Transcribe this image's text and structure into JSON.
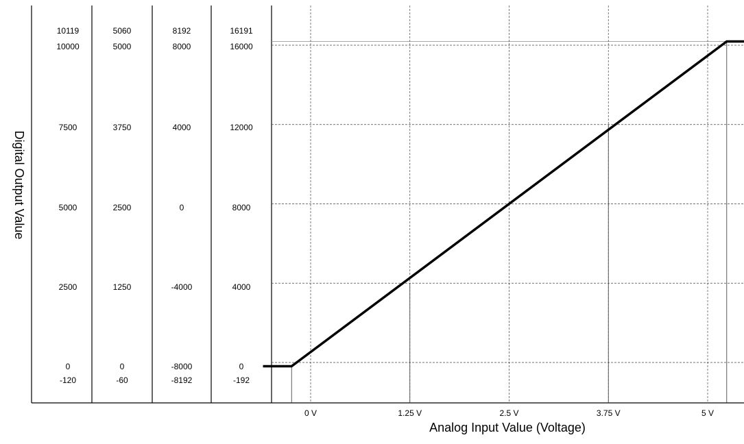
{
  "chart_data": {
    "type": "line",
    "title": "",
    "xlabel": "Analog Input Value (Voltage)",
    "ylabel": "Digital Output Value",
    "grid": true,
    "x_ticks": [
      {
        "value": 0,
        "label": "0 V"
      },
      {
        "value": 1.25,
        "label": "1.25 V"
      },
      {
        "value": 2.5,
        "label": "2.5 V"
      },
      {
        "value": 3.75,
        "label": "3.75 V"
      },
      {
        "value": 5,
        "label": "5 V"
      }
    ],
    "y_primary_ticks": [
      {
        "value": -192,
        "label": "-192"
      },
      {
        "value": 0,
        "label": "0"
      },
      {
        "value": 4000,
        "label": "4000"
      },
      {
        "value": 8000,
        "label": "8000"
      },
      {
        "value": 12000,
        "label": "12000"
      },
      {
        "value": 16000,
        "label": "16000"
      },
      {
        "value": 16191,
        "label": "16191"
      }
    ],
    "y_scale_columns": [
      {
        "name": "column-1",
        "labels": [
          "10119",
          "10000",
          "7500",
          "5000",
          "2500",
          "0",
          "-120"
        ]
      },
      {
        "name": "column-2",
        "labels": [
          "5060",
          "5000",
          "3750",
          "2500",
          "1250",
          "0",
          "-60"
        ]
      },
      {
        "name": "column-3",
        "labels": [
          "8192",
          "8000",
          "4000",
          "0",
          "-4000",
          "-8000",
          "-8192"
        ]
      },
      {
        "name": "column-4",
        "labels": [
          "16191",
          "16000",
          "12000",
          "8000",
          "4000",
          "0",
          "-192"
        ]
      }
    ],
    "series": [
      {
        "x": [
          -0.6,
          -0.24,
          5.24,
          5.6
        ],
        "y": [
          -192,
          -192,
          16191,
          16191
        ]
      }
    ],
    "reference_lines": [
      {
        "x": -0.24,
        "y": -192
      },
      {
        "x": 1.25,
        "y": 4000
      },
      {
        "x": 3.75,
        "y": 12000
      },
      {
        "x": 5.24,
        "y": 16191
      }
    ],
    "xlim": [
      -0.6,
      5.6
    ],
    "ylim": [
      -192,
      16191
    ]
  }
}
